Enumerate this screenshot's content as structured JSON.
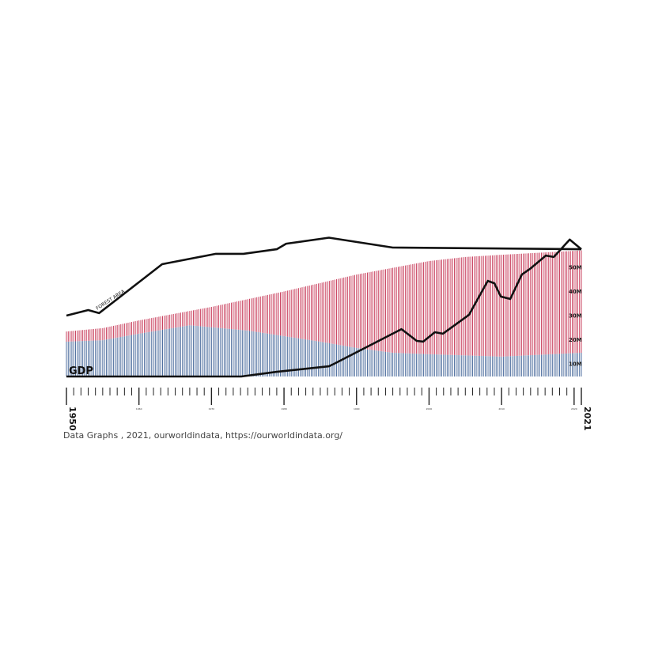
{
  "chart_data": {
    "type": "bar",
    "title": "",
    "xlim": [
      1950,
      2021
    ],
    "ylim": [
      4.75,
      57
    ],
    "y_unit": "M",
    "grid": false,
    "x_end_labels": [
      "1950",
      "2021"
    ],
    "x_tick_labels": [
      "1960",
      "1970",
      "1980",
      "1990",
      "2000",
      "2010",
      "2020"
    ],
    "y_tick_labels": [
      "10M",
      "20M",
      "30M",
      "40M",
      "50M"
    ],
    "y_tick_values": [
      10,
      20,
      30,
      40,
      50
    ],
    "bars": {
      "stacked": true,
      "colors": {
        "lower": "#4f6f9f",
        "upper": "#c9405e"
      },
      "total_top": {
        "years": [
          1950,
          1955,
          1960,
          1970,
          1980,
          1990,
          2000,
          2005,
          2010,
          2021
        ],
        "values": [
          23.4,
          24.8,
          28,
          33.6,
          40,
          47,
          52.6,
          54.3,
          55.2,
          57
        ]
      },
      "lower_top": {
        "years": [
          1950,
          1955,
          1960,
          1967,
          1975,
          1980,
          1985,
          1990,
          1995,
          2000,
          2010,
          2021
        ],
        "values": [
          19.2,
          19.8,
          22.5,
          26,
          23.8,
          21.5,
          19.2,
          16.6,
          14.6,
          14,
          13,
          14.6
        ]
      }
    },
    "series": [
      {
        "name": "FOREST AREA",
        "type": "line",
        "years": [
          1950,
          1953,
          1954.5,
          1963.2,
          1970.6,
          1974.4,
          1979,
          1980.3,
          1986.2,
          1995,
          2021
        ],
        "values": [
          30,
          32.3,
          31,
          51.3,
          55.6,
          55.6,
          57.5,
          59.8,
          62.3,
          58.2,
          57.5
        ]
      },
      {
        "name": "GDP",
        "type": "line",
        "years": [
          1950,
          1974.1,
          1979,
          1986.2,
          1986.9,
          1996.2,
          1998.3,
          1999.2,
          2000.8,
          2001.9,
          2005.5,
          2008.1,
          2009,
          2009.9,
          2011.2,
          2012.8,
          2013.9,
          2016.1,
          2017.2,
          2019.4,
          2021
        ],
        "values": [
          4.75,
          4.75,
          6.7,
          9,
          10,
          24.4,
          19.5,
          19.2,
          23.1,
          22.5,
          30.3,
          44.4,
          43.4,
          37.9,
          36.9,
          47,
          49.3,
          54.9,
          54.3,
          61.5,
          57.5
        ]
      }
    ]
  },
  "caption": "Data Graphs , 2021, ourworldindata, https://ourworldindata.org/"
}
